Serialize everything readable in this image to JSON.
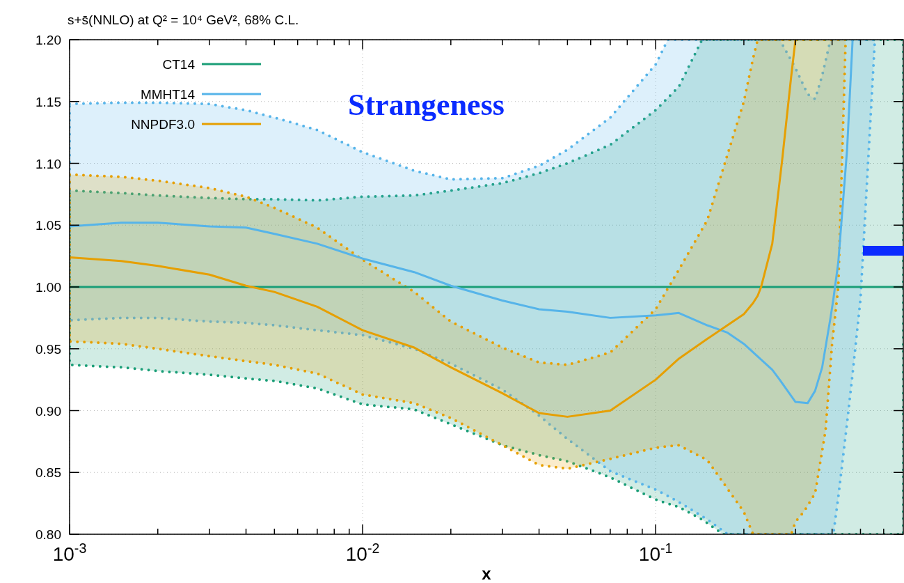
{
  "chart_data": {
    "type": "line",
    "title": "s+s̄(NNLO) at Q² = 10⁴ GeV², 68% C.L.",
    "xlabel": "x",
    "annotations": [
      "Strangeness"
    ],
    "log": "x",
    "xlim": [
      0.001,
      0.7
    ],
    "ylim": [
      0.8,
      1.2
    ],
    "xticks": [
      {
        "value": 0.001,
        "label": "10$^{-3}$"
      },
      {
        "value": 0.002,
        "label": null
      },
      {
        "value": 0.003,
        "label": null
      },
      {
        "value": 0.004,
        "label": null
      },
      {
        "value": 0.005,
        "label": null
      },
      {
        "value": 0.006,
        "label": null
      },
      {
        "value": 0.007,
        "label": null
      },
      {
        "value": 0.008,
        "label": null
      },
      {
        "value": 0.009,
        "label": null
      },
      {
        "value": 0.01,
        "label": "10$^{-2}$"
      },
      {
        "value": 0.02,
        "label": null
      },
      {
        "value": 0.03,
        "label": null
      },
      {
        "value": 0.04,
        "label": null
      },
      {
        "value": 0.05,
        "label": null
      },
      {
        "value": 0.06,
        "label": null
      },
      {
        "value": 0.07,
        "label": null
      },
      {
        "value": 0.08,
        "label": null
      },
      {
        "value": 0.09,
        "label": null
      },
      {
        "value": 0.1,
        "label": "10$^{-1}$"
      },
      {
        "value": 0.2,
        "label": null
      },
      {
        "value": 0.3,
        "label": null
      },
      {
        "value": 0.4,
        "label": null
      },
      {
        "value": 0.5,
        "label": null
      },
      {
        "value": 0.6,
        "label": null
      }
    ],
    "yticks": [
      {
        "value": 0.8,
        "label": "0.80"
      },
      {
        "value": 0.85,
        "label": "0.85"
      },
      {
        "value": 0.9,
        "label": "0.90"
      },
      {
        "value": 0.95,
        "label": "0.95"
      },
      {
        "value": 1.0,
        "label": "1.00"
      },
      {
        "value": 1.05,
        "label": "1.05"
      },
      {
        "value": 1.1,
        "label": "1.10"
      },
      {
        "value": 1.15,
        "label": "1.15"
      },
      {
        "value": 1.2,
        "label": "1.20"
      }
    ],
    "grid": true,
    "legend": "top left",
    "series": [
      {
        "name": "CT14",
        "color": "#1a9e77",
        "x": [
          0.001,
          0.0015,
          0.002,
          0.003,
          0.004,
          0.005,
          0.007,
          0.01,
          0.015,
          0.02,
          0.03,
          0.04,
          0.05,
          0.07,
          0.1,
          0.12,
          0.144,
          0.17,
          0.2,
          0.3,
          0.4,
          0.5,
          0.7
        ],
        "values": [
          1,
          1,
          1,
          1,
          1,
          1,
          1,
          1,
          1,
          1,
          1,
          1,
          1,
          1,
          1,
          1,
          1,
          1,
          1,
          1,
          1,
          1,
          1
        ],
        "upper": [
          1.078,
          1.076,
          1.074,
          1.072,
          1.071,
          1.071,
          1.07,
          1.073,
          1.074,
          1.078,
          1.084,
          1.092,
          1.1,
          1.115,
          1.143,
          1.162,
          1.2,
          1.2,
          1.2,
          1.2,
          1.2,
          1.2,
          1.2
        ],
        "lower": [
          0.937,
          0.935,
          0.932,
          0.929,
          0.926,
          0.924,
          0.918,
          0.905,
          0.901,
          0.889,
          0.872,
          0.864,
          0.859,
          0.846,
          0.828,
          0.822,
          0.812,
          0.8,
          0.8,
          0.8,
          0.8,
          0.8,
          0.8
        ]
      },
      {
        "name": "MMHT14",
        "color": "#56b4e9",
        "x": [
          0.001,
          0.0015,
          0.002,
          0.003,
          0.004,
          0.005,
          0.007,
          0.01,
          0.015,
          0.02,
          0.03,
          0.04,
          0.05,
          0.07,
          0.1,
          0.11,
          0.12,
          0.15,
          0.176,
          0.2,
          0.25,
          0.265,
          0.3,
          0.33,
          0.35,
          0.37,
          0.395,
          0.404,
          0.42,
          0.45,
          0.47,
          0.5,
          0.56
        ],
        "values": [
          1.049,
          1.052,
          1.052,
          1.049,
          1.048,
          1.043,
          1.035,
          1.023,
          1.012,
          1.001,
          0.989,
          0.982,
          0.98,
          0.975,
          0.977,
          0.978,
          0.979,
          0.969,
          0.963,
          0.954,
          0.933,
          0.925,
          0.907,
          0.906,
          0.916,
          0.935,
          0.975,
          0.99,
          1.02,
          1.111,
          1.2,
          null,
          null
        ],
        "upper": [
          1.148,
          1.149,
          1.149,
          1.148,
          1.143,
          1.137,
          1.127,
          1.109,
          1.094,
          1.087,
          1.088,
          1.098,
          1.111,
          1.137,
          1.18,
          1.2,
          1.2,
          1.2,
          1.2,
          1.2,
          1.2,
          1.2,
          1.177,
          1.156,
          1.152,
          1.171,
          1.2,
          1.2,
          1.2,
          1.2,
          1.2,
          1.2,
          1.2
        ],
        "lower": [
          0.973,
          0.975,
          0.975,
          0.972,
          0.971,
          0.969,
          0.965,
          0.961,
          0.95,
          0.938,
          0.917,
          0.896,
          0.877,
          0.851,
          0.836,
          0.831,
          0.826,
          0.812,
          0.8,
          0.8,
          0.8,
          0.8,
          0.8,
          0.8,
          0.8,
          0.8,
          0.8,
          0.8,
          0.83,
          0.89,
          0.93,
          0.99,
          1.2
        ]
      },
      {
        "name": "NNPDF3.0",
        "color": "#e69f00",
        "x": [
          0.001,
          0.0015,
          0.002,
          0.003,
          0.004,
          0.005,
          0.007,
          0.01,
          0.015,
          0.02,
          0.03,
          0.04,
          0.05,
          0.07,
          0.1,
          0.12,
          0.15,
          0.2,
          0.215,
          0.223,
          0.229,
          0.25,
          0.27,
          0.29,
          0.3,
          0.32,
          0.35,
          0.38,
          0.4,
          0.42,
          0.445
        ],
        "values": [
          1.024,
          1.021,
          1.017,
          1.01,
          1.001,
          0.996,
          0.984,
          0.965,
          0.951,
          0.935,
          0.914,
          0.898,
          0.895,
          0.9,
          0.925,
          0.942,
          0.958,
          0.978,
          0.987,
          0.993,
          1.0,
          1.035,
          1.102,
          1.17,
          1.2,
          null,
          null,
          null,
          null,
          null,
          null
        ],
        "upper": [
          1.091,
          1.089,
          1.086,
          1.08,
          1.073,
          1.064,
          1.048,
          1.022,
          0.996,
          0.972,
          0.951,
          0.939,
          0.937,
          0.947,
          0.982,
          1.014,
          1.054,
          1.15,
          1.185,
          1.2,
          1.2,
          1.2,
          1.2,
          1.2,
          1.2,
          1.2,
          1.2,
          1.2,
          1.2,
          1.2,
          1.2
        ],
        "lower": [
          0.956,
          0.954,
          0.95,
          0.944,
          0.94,
          0.937,
          0.93,
          0.913,
          0.906,
          0.894,
          0.872,
          0.856,
          0.853,
          0.861,
          0.87,
          0.872,
          0.86,
          0.818,
          0.8,
          0.8,
          0.8,
          0.8,
          0.8,
          0.8,
          0.81,
          0.818,
          0.833,
          0.884,
          0.954,
          1.0,
          1.2
        ]
      }
    ]
  }
}
